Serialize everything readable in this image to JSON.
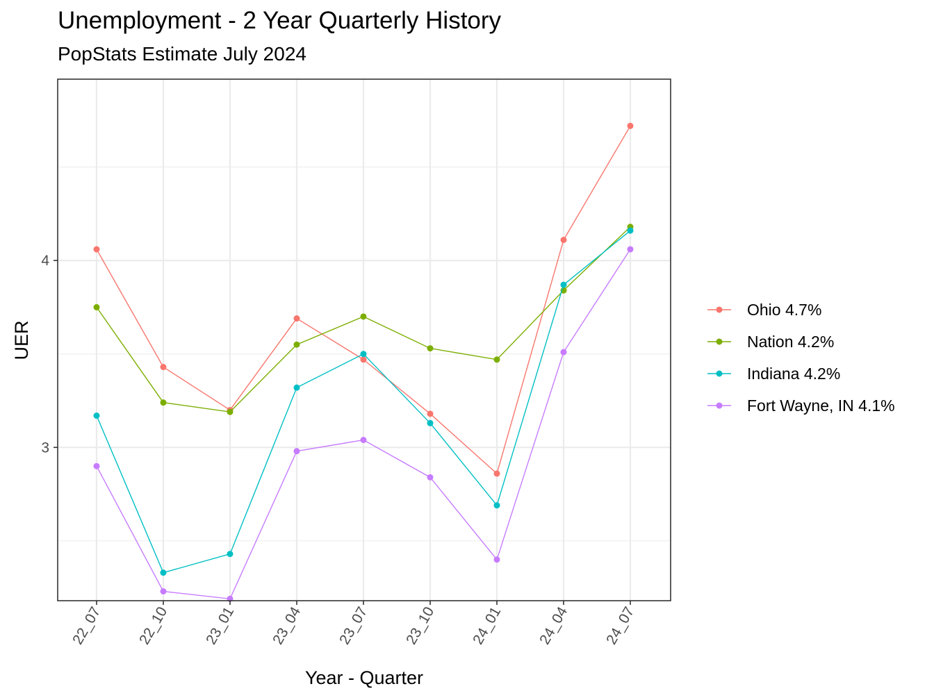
{
  "chart_data": {
    "type": "line",
    "title": "Unemployment - 2 Year Quarterly History",
    "subtitle": "PopStats Estimate July 2024",
    "xlabel": "Year - Quarter",
    "ylabel": "UER",
    "categories": [
      "22_07",
      "22_10",
      "23_01",
      "23_04",
      "23_07",
      "23_10",
      "24_01",
      "24_04",
      "24_07"
    ],
    "yticks": [
      3,
      4
    ],
    "ylim": [
      2.18,
      4.97
    ],
    "grid": true,
    "legend_position": "right",
    "series": [
      {
        "name": "Ohio 4.7%",
        "color": "#F8766D",
        "values": [
          4.06,
          3.43,
          3.2,
          3.69,
          3.47,
          3.18,
          2.86,
          4.11,
          4.72
        ]
      },
      {
        "name": "Nation 4.2%",
        "color": "#7CAE00",
        "values": [
          3.75,
          3.24,
          3.19,
          3.55,
          3.7,
          3.53,
          3.47,
          3.84,
          4.18
        ]
      },
      {
        "name": "Indiana 4.2%",
        "color": "#00BFC4",
        "values": [
          3.17,
          2.33,
          2.43,
          3.32,
          3.5,
          3.13,
          2.69,
          3.87,
          4.16
        ]
      },
      {
        "name": "Fort Wayne, IN 4.1%",
        "color": "#C77CFF",
        "values": [
          2.9,
          2.23,
          2.19,
          2.98,
          3.04,
          2.84,
          2.4,
          3.51,
          4.06
        ]
      }
    ]
  }
}
